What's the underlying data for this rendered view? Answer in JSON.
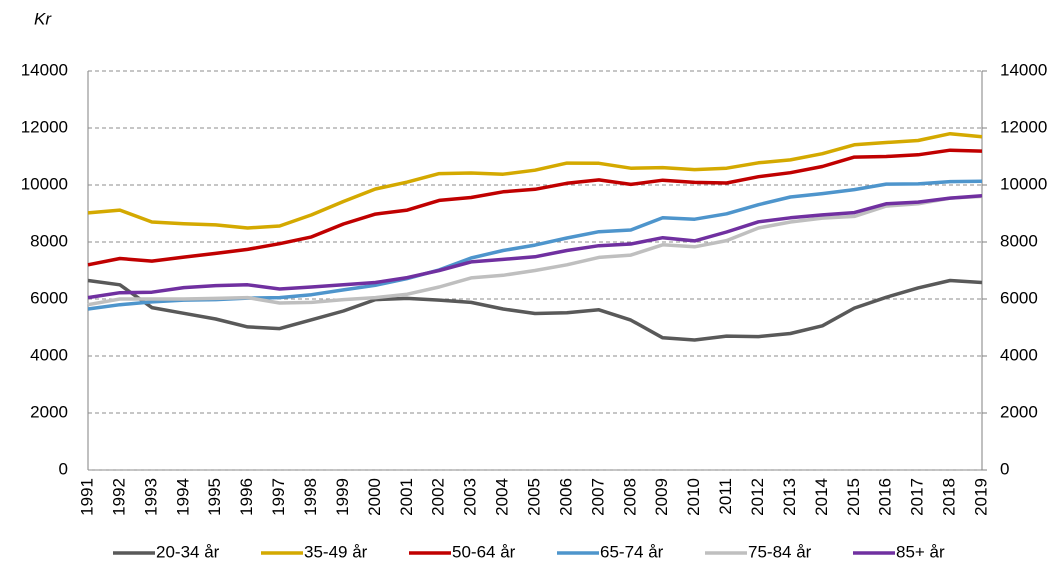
{
  "chart_data": {
    "type": "line",
    "y_label": "Kr",
    "categories": [
      "1991",
      "1992",
      "1993",
      "1994",
      "1995",
      "1996",
      "1997",
      "1998",
      "1999",
      "2000",
      "2001",
      "2002",
      "2003",
      "2004",
      "2005",
      "2006",
      "2007",
      "2008",
      "2009",
      "2010",
      "2011",
      "2012",
      "2013",
      "2014",
      "2015",
      "2016",
      "2017",
      "2018",
      "2019"
    ],
    "series": [
      {
        "name": "20-34 år",
        "color": "#595959",
        "values": [
          6650,
          6500,
          5700,
          5500,
          5300,
          5020,
          4960,
          5270,
          5580,
          5980,
          6020,
          5960,
          5880,
          5650,
          5490,
          5520,
          5620,
          5260,
          4640,
          4560,
          4700,
          4680,
          4790,
          5060,
          5680,
          6060,
          6390,
          6650,
          6580
        ]
      },
      {
        "name": "35-49 år",
        "color": "#d4a900",
        "values": [
          9020,
          9120,
          8700,
          8640,
          8600,
          8490,
          8560,
          8950,
          9420,
          9860,
          10100,
          10400,
          10420,
          10380,
          10520,
          10770,
          10760,
          10590,
          10610,
          10540,
          10590,
          10780,
          10880,
          11100,
          11410,
          11490,
          11560,
          11800,
          11690
        ]
      },
      {
        "name": "50-64 år",
        "color": "#c00000",
        "values": [
          7200,
          7420,
          7330,
          7470,
          7600,
          7740,
          7940,
          8180,
          8630,
          8980,
          9120,
          9460,
          9560,
          9760,
          9850,
          10060,
          10180,
          10020,
          10170,
          10090,
          10070,
          10290,
          10430,
          10650,
          10980,
          11000,
          11060,
          11220,
          11190
        ]
      },
      {
        "name": "65-74 år",
        "color": "#4e95cc",
        "values": [
          5650,
          5800,
          5900,
          5960,
          5980,
          6030,
          6050,
          6150,
          6320,
          6480,
          6720,
          7020,
          7440,
          7700,
          7890,
          8140,
          8360,
          8420,
          8850,
          8800,
          8990,
          9310,
          9580,
          9700,
          9840,
          10030,
          10040,
          10120,
          10130
        ]
      },
      {
        "name": "75-84 år",
        "color": "#bfbfbf",
        "values": [
          5800,
          6000,
          6000,
          6000,
          6020,
          6050,
          5860,
          5880,
          5980,
          6050,
          6170,
          6420,
          6740,
          6830,
          7000,
          7200,
          7460,
          7540,
          7900,
          7830,
          8050,
          8490,
          8700,
          8840,
          8900,
          9260,
          9340,
          9540,
          9600
        ]
      },
      {
        "name": "85+ år",
        "color": "#7030a0",
        "values": [
          6050,
          6220,
          6240,
          6400,
          6470,
          6500,
          6350,
          6420,
          6500,
          6580,
          6750,
          7000,
          7300,
          7390,
          7480,
          7700,
          7870,
          7930,
          8150,
          8040,
          8350,
          8710,
          8850,
          8950,
          9030,
          9340,
          9400,
          9540,
          9620
        ]
      }
    ],
    "ylim": [
      0,
      14000
    ],
    "yticks": [
      0,
      2000,
      4000,
      6000,
      8000,
      10000,
      12000,
      14000
    ],
    "y2lim": [
      0,
      14000
    ],
    "y2ticks": [
      0,
      2000,
      4000,
      6000,
      8000,
      10000,
      12000,
      14000
    ],
    "grid": true,
    "legend": "bottom"
  }
}
